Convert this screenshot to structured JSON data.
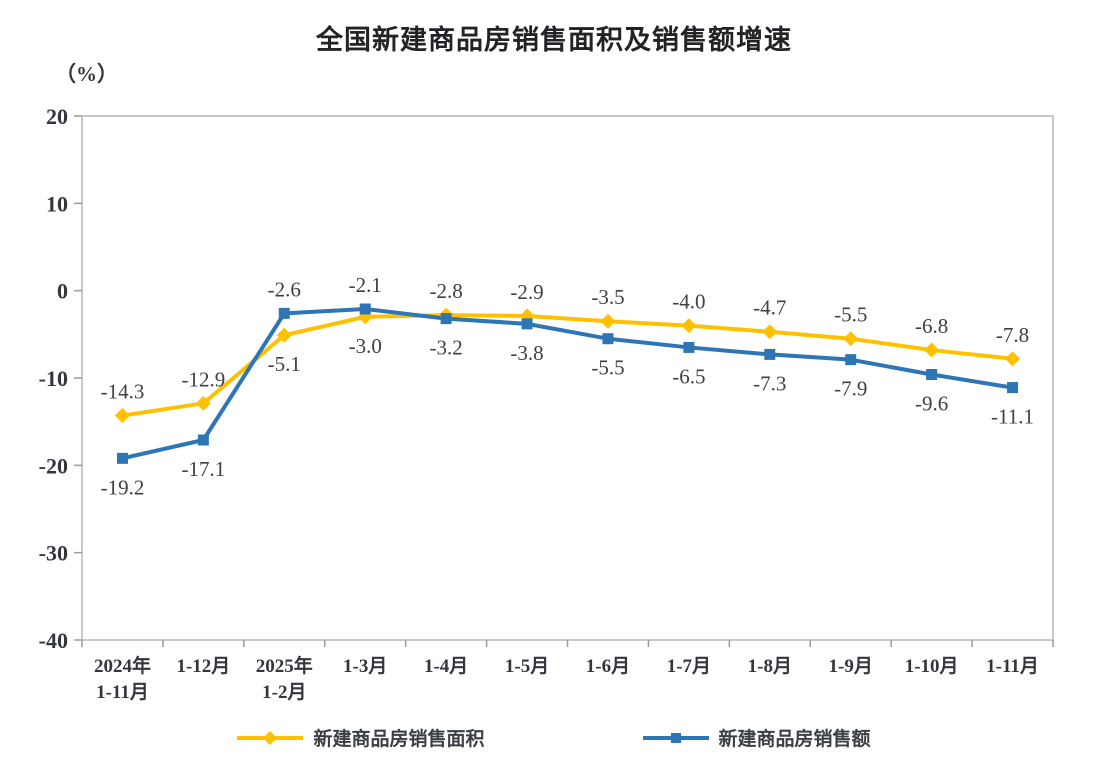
{
  "chart": {
    "title": "全国新建商品房销售面积及销售额增速",
    "unit_label": "（%）"
  },
  "chart_data": {
    "type": "line",
    "title": "全国新建商品房销售面积及销售额增速",
    "unit": "%",
    "categories": [
      [
        "2024年",
        "1-11月"
      ],
      [
        "1-12月"
      ],
      [
        "2025年",
        "1-2月"
      ],
      [
        "1-3月"
      ],
      [
        "1-4月"
      ],
      [
        "1-5月"
      ],
      [
        "1-6月"
      ],
      [
        "1-7月"
      ],
      [
        "1-8月"
      ],
      [
        "1-9月"
      ],
      [
        "1-10月"
      ],
      [
        "1-11月"
      ]
    ],
    "series": [
      {
        "name": "新建商品房销售面积",
        "color": "#FFC000",
        "marker": "diamond",
        "values": [
          -14.3,
          -12.9,
          -5.1,
          -3.0,
          -2.8,
          -2.9,
          -3.5,
          -4.0,
          -4.7,
          -5.5,
          -6.8,
          -7.8
        ]
      },
      {
        "name": "新建商品房销售额",
        "color": "#2E75B6",
        "marker": "square",
        "values": [
          -19.2,
          -17.1,
          -2.6,
          -2.1,
          -3.2,
          -3.8,
          -5.5,
          -6.5,
          -7.3,
          -7.9,
          -9.6,
          -11.1
        ]
      }
    ],
    "y_axis": {
      "min": -40,
      "max": 20,
      "step": 10,
      "tick_labels": [
        "20",
        "10",
        "0",
        "-10",
        "-20",
        "-30",
        "-40"
      ]
    },
    "grid": false,
    "data_labels": true,
    "legend_position": "bottom",
    "colors": {
      "axis_border": "#c9c9c9",
      "tick": "#9b9b9b",
      "tick_text": "#33373d",
      "data_label_text": "#3d4045"
    }
  }
}
